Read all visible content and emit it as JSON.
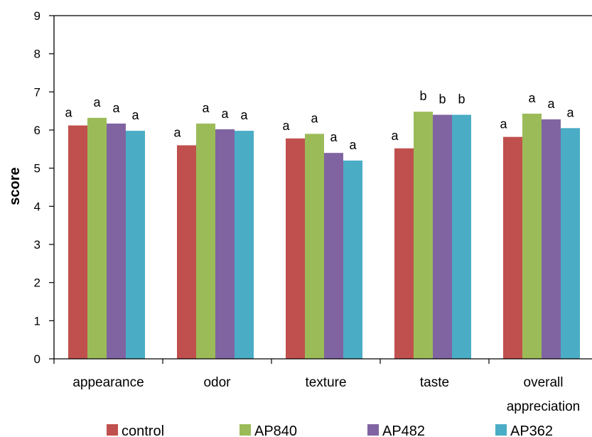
{
  "chart_data": {
    "type": "bar",
    "ylabel": "score",
    "xlabel": "",
    "ylim": [
      0,
      9
    ],
    "yticks": [
      0,
      1,
      2,
      3,
      4,
      5,
      6,
      7,
      8,
      9
    ],
    "grid": false,
    "legend_position": "bottom",
    "categories": [
      [
        "appearance"
      ],
      [
        "odor"
      ],
      [
        "texture"
      ],
      [
        "taste"
      ],
      [
        "overall",
        "appreciation"
      ]
    ],
    "series": [
      {
        "name": "control",
        "color": "#c0504d",
        "values": [
          6.12,
          5.6,
          5.78,
          5.52,
          5.82
        ],
        "labels": [
          "a",
          "a",
          "a",
          "a",
          "a"
        ]
      },
      {
        "name": "AP840",
        "color": "#9bbb59",
        "values": [
          6.32,
          6.17,
          5.9,
          6.48,
          6.43
        ],
        "labels": [
          "a",
          "a",
          "a",
          "b",
          "a"
        ]
      },
      {
        "name": "AP482",
        "color": "#8064a2",
        "values": [
          6.17,
          6.02,
          5.4,
          6.4,
          6.28
        ],
        "labels": [
          "a",
          "a",
          "a",
          "b",
          "a"
        ]
      },
      {
        "name": "AP362",
        "color": "#4bacc6",
        "values": [
          5.98,
          5.98,
          5.2,
          6.4,
          6.05
        ],
        "labels": [
          "a",
          "a",
          "a",
          "b",
          "a"
        ]
      }
    ]
  }
}
